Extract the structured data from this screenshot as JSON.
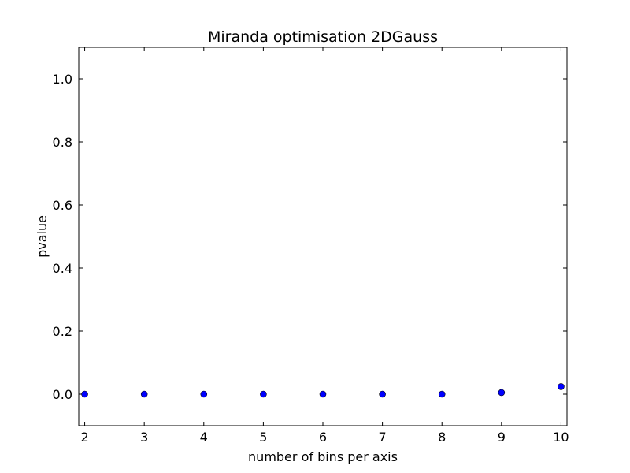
{
  "chart_data": {
    "type": "scatter",
    "title": "Miranda optimisation 2DGauss",
    "xlabel": "number of bins per axis",
    "ylabel": "pvalue",
    "xlim": [
      1.9,
      10.1
    ],
    "ylim": [
      -0.1,
      1.1
    ],
    "xticks": [
      2,
      3,
      4,
      5,
      6,
      7,
      8,
      9,
      10
    ],
    "xtick_labels": [
      "2",
      "3",
      "4",
      "5",
      "6",
      "7",
      "8",
      "9",
      "10"
    ],
    "yticks": [
      0.0,
      0.2,
      0.4,
      0.6,
      0.8,
      1.0
    ],
    "ytick_labels": [
      "0.0",
      "0.2",
      "0.4",
      "0.6",
      "0.8",
      "1.0"
    ],
    "grid": false,
    "series": [
      {
        "x": [
          2,
          3,
          4,
          5,
          6,
          7,
          8,
          9,
          10
        ],
        "y": [
          0.0,
          0.0,
          0.0,
          0.0,
          0.0,
          0.0,
          0.0,
          0.005,
          0.024
        ],
        "color": "#0000ff",
        "marker": "circle"
      }
    ]
  }
}
